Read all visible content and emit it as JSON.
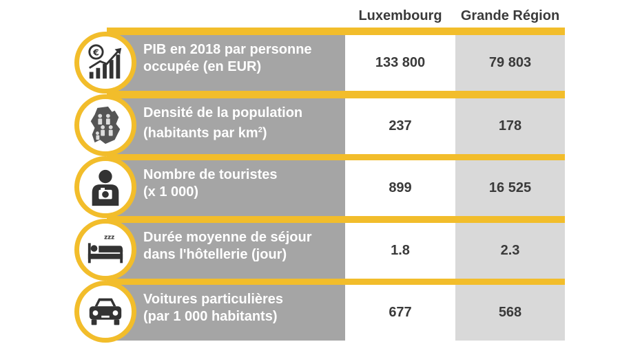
{
  "columns": {
    "lux": "Luxembourg",
    "gr": "Grande Région"
  },
  "rows": [
    {
      "icon": "euro-growth-chart-icon",
      "line1": "PIB en 2018 par personne",
      "line2": "occupée (en EUR)",
      "lux": "133 800",
      "gr": "79 803"
    },
    {
      "icon": "population-map-icon",
      "line1": "Densité de la population",
      "line2": "(habitants par km",
      "line2_sup": "2",
      "line2_end": ")",
      "lux": "237",
      "gr": "178"
    },
    {
      "icon": "tourist-camera-icon",
      "line1": "Nombre de touristes",
      "line2": "(x 1 000)",
      "lux": "899",
      "gr": "16 525"
    },
    {
      "icon": "sleeping-bed-icon",
      "line1": "Durée moyenne de séjour",
      "line2": "dans l'hôtellerie (jour)",
      "lux": "1.8",
      "gr": "2.3"
    },
    {
      "icon": "car-icon",
      "line1": "Voitures particulières",
      "line2": "(par 1 000 habitants)",
      "lux": "677",
      "gr": "568"
    }
  ],
  "colors": {
    "accent": "#f2bd2b",
    "label_bg": "#a5a5a5",
    "gr_bg": "#d9d9d9",
    "text": "#3a3a3a"
  }
}
